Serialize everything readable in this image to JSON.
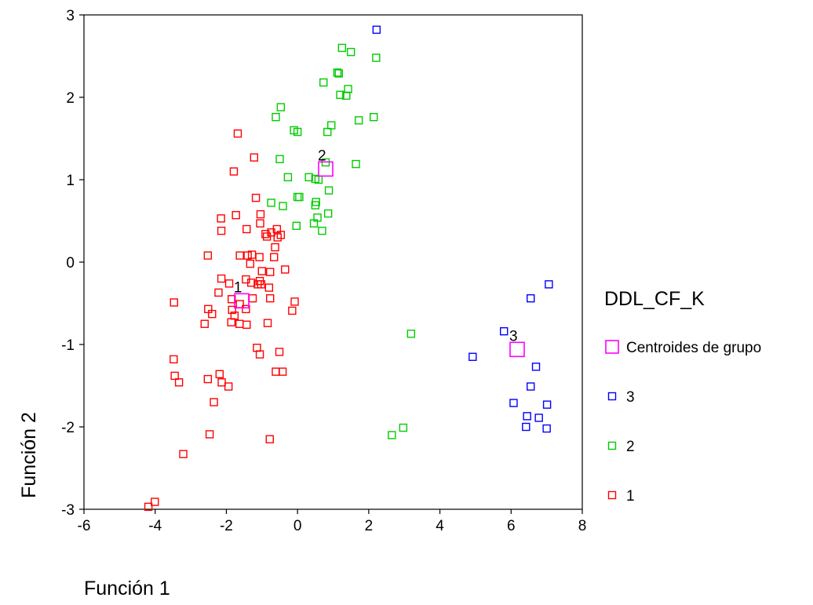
{
  "chart_data": {
    "type": "scatter",
    "xlabel": "Función 1",
    "ylabel": "Función 2",
    "xlim": [
      -6,
      8
    ],
    "ylim": [
      -3,
      3
    ],
    "xticks": [
      -6,
      -4,
      -2,
      0,
      2,
      4,
      6,
      8
    ],
    "yticks": [
      -3,
      -2,
      -1,
      0,
      1,
      2,
      3
    ],
    "x_tick_labels": [
      "-6",
      "-4",
      "-2",
      "0",
      "2",
      "4",
      "6",
      "8"
    ],
    "y_tick_labels": [
      "-3",
      "-2",
      "-1",
      "0",
      "1",
      "2",
      "3"
    ],
    "grid": false,
    "legend": {
      "title": "DDL_CF_K",
      "placement": "right",
      "entries": [
        {
          "label": "Centroides de grupo",
          "series": "centroids"
        },
        {
          "label": "3",
          "series": "3"
        },
        {
          "label": "2",
          "series": "2"
        },
        {
          "label": "1",
          "series": "1"
        }
      ]
    },
    "colors": {
      "1": "#ff0000",
      "2": "#00cc00",
      "3": "#0000ff",
      "centroids": "#ff00ff"
    },
    "series": [
      {
        "name": "1",
        "marker": "square",
        "points": [
          [
            -1.68,
            1.56
          ],
          [
            -1.79,
            1.1
          ],
          [
            -1.22,
            1.27
          ],
          [
            -2.15,
            0.53
          ],
          [
            -1.73,
            0.57
          ],
          [
            -1.17,
            0.78
          ],
          [
            -1.04,
            0.58
          ],
          [
            -1.05,
            0.47
          ],
          [
            -1.43,
            0.4
          ],
          [
            -2.14,
            0.38
          ],
          [
            -0.74,
            0.36
          ],
          [
            -0.9,
            0.34
          ],
          [
            -0.58,
            0.4
          ],
          [
            -0.56,
            0.3
          ],
          [
            -0.47,
            0.33
          ],
          [
            -0.63,
            0.18
          ],
          [
            -0.86,
            0.31
          ],
          [
            -1.4,
            0.08
          ],
          [
            -1.28,
            0.09
          ],
          [
            -1.62,
            0.08
          ],
          [
            -1.33,
            -0.02
          ],
          [
            -2.52,
            0.08
          ],
          [
            -0.66,
            0.06
          ],
          [
            -1.07,
            0.06
          ],
          [
            -1.0,
            -0.11
          ],
          [
            -1.06,
            -0.23
          ],
          [
            -1.12,
            -0.27
          ],
          [
            -1.3,
            -0.25
          ],
          [
            -0.35,
            -0.09
          ],
          [
            -0.77,
            -0.12
          ],
          [
            -0.8,
            -0.31
          ],
          [
            -1.45,
            -0.21
          ],
          [
            -2.14,
            -0.2
          ],
          [
            -1.92,
            -0.26
          ],
          [
            -1.02,
            -0.27
          ],
          [
            -2.22,
            -0.37
          ],
          [
            -1.85,
            -0.45
          ],
          [
            -1.26,
            -0.44
          ],
          [
            -0.77,
            -0.44
          ],
          [
            -1.84,
            -0.58
          ],
          [
            -1.62,
            -0.51
          ],
          [
            -1.45,
            -0.57
          ],
          [
            -1.77,
            -0.65
          ],
          [
            -2.4,
            -0.63
          ],
          [
            -2.51,
            -0.57
          ],
          [
            -2.61,
            -0.75
          ],
          [
            -1.86,
            -0.73
          ],
          [
            -1.63,
            -0.75
          ],
          [
            -1.43,
            -0.76
          ],
          [
            -0.84,
            -0.74
          ],
          [
            -0.08,
            -0.48
          ],
          [
            -0.15,
            -0.59
          ],
          [
            -3.47,
            -0.49
          ],
          [
            -1.14,
            -1.04
          ],
          [
            -1.06,
            -1.12
          ],
          [
            -0.51,
            -1.09
          ],
          [
            -0.61,
            -1.33
          ],
          [
            -0.42,
            -1.33
          ],
          [
            -2.19,
            -1.36
          ],
          [
            -2.13,
            -1.46
          ],
          [
            -1.94,
            -1.51
          ],
          [
            -2.52,
            -1.42
          ],
          [
            -3.48,
            -1.18
          ],
          [
            -3.45,
            -1.38
          ],
          [
            -3.33,
            -1.46
          ],
          [
            -2.35,
            -1.7
          ],
          [
            -2.47,
            -2.09
          ],
          [
            -0.78,
            -2.15
          ],
          [
            -3.21,
            -2.33
          ],
          [
            -4.01,
            -2.91
          ],
          [
            -4.19,
            -2.97
          ]
        ]
      },
      {
        "name": "2",
        "marker": "square",
        "points": [
          [
            1.25,
            2.6
          ],
          [
            1.5,
            2.55
          ],
          [
            2.21,
            2.48
          ],
          [
            1.12,
            2.3
          ],
          [
            1.16,
            2.29
          ],
          [
            0.73,
            2.18
          ],
          [
            1.42,
            2.1
          ],
          [
            1.2,
            2.03
          ],
          [
            1.37,
            2.02
          ],
          [
            -0.47,
            1.88
          ],
          [
            2.14,
            1.76
          ],
          [
            1.72,
            1.72
          ],
          [
            -0.61,
            1.76
          ],
          [
            0.95,
            1.66
          ],
          [
            0.84,
            1.58
          ],
          [
            -0.1,
            1.6
          ],
          [
            0.0,
            1.58
          ],
          [
            1.64,
            1.19
          ],
          [
            -0.5,
            1.25
          ],
          [
            0.79,
            1.21
          ],
          [
            0.32,
            1.03
          ],
          [
            0.5,
            1.01
          ],
          [
            -0.27,
            1.03
          ],
          [
            0.59,
            1.0
          ],
          [
            0.88,
            0.87
          ],
          [
            0.05,
            0.79
          ],
          [
            0.0,
            0.79
          ],
          [
            0.52,
            0.73
          ],
          [
            0.5,
            0.69
          ],
          [
            -0.74,
            0.72
          ],
          [
            -0.41,
            0.68
          ],
          [
            0.56,
            0.54
          ],
          [
            0.86,
            0.59
          ],
          [
            0.46,
            0.47
          ],
          [
            -0.03,
            0.44
          ],
          [
            0.69,
            0.38
          ],
          [
            3.19,
            -0.87
          ],
          [
            2.97,
            -2.01
          ],
          [
            2.65,
            -2.1
          ]
        ]
      },
      {
        "name": "3",
        "marker": "square",
        "points": [
          [
            2.22,
            2.82
          ],
          [
            7.06,
            -0.27
          ],
          [
            6.55,
            -0.44
          ],
          [
            5.8,
            -0.84
          ],
          [
            4.92,
            -1.15
          ],
          [
            6.7,
            -1.27
          ],
          [
            6.55,
            -1.51
          ],
          [
            6.07,
            -1.71
          ],
          [
            7.01,
            -1.73
          ],
          [
            6.45,
            -1.87
          ],
          [
            6.78,
            -1.89
          ],
          [
            6.42,
            -2.0
          ],
          [
            7.0,
            -2.02
          ]
        ]
      },
      {
        "name": "Centroides de grupo",
        "marker": "square-large",
        "points": [
          [
            -1.57,
            -0.47
          ],
          [
            0.79,
            1.13
          ],
          [
            6.17,
            -1.06
          ]
        ],
        "point_labels": [
          "1",
          "2",
          "3"
        ]
      }
    ]
  }
}
